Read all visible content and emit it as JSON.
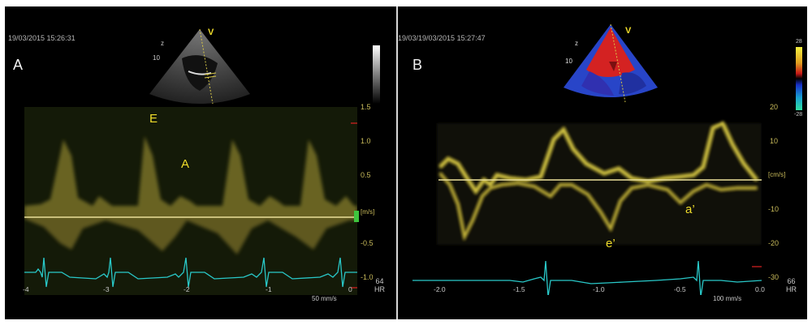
{
  "panel_a": {
    "timestamp": "19/03/2015 15:26:31",
    "label": "A",
    "sector_letter": "V",
    "peak_labels": {
      "e": "E",
      "a": "A"
    },
    "y_ticks": [
      "1.5",
      "1.0",
      "0.5",
      "[m/s]",
      "-0.5",
      "-1.0"
    ],
    "x_ticks": [
      "-4",
      "-3",
      "-2",
      "-1",
      "0"
    ],
    "sweep_speed": "50 mm/s",
    "heart_rate": "64",
    "hr_label": "HR",
    "trace_color": "#e8d848",
    "ecg_color": "#29c9c9"
  },
  "panel_b": {
    "timestamp": "19/03/19/03/2015 15:27:47",
    "label": "B",
    "sector_letter": "V",
    "peak_labels": {
      "e_prime": "e’",
      "a_prime": "a’"
    },
    "y_ticks": [
      "20",
      "10",
      "[cm/s]",
      "-10",
      "-20",
      "-30"
    ],
    "x_ticks": [
      "-2.0",
      "-1.5",
      "-1.0",
      "-0.5",
      "0.0"
    ],
    "sweep_speed": "100 mm/s",
    "heart_rate": "66",
    "hr_label": "HR",
    "color_bar_ticks": [
      "28",
      "-28"
    ],
    "trace_color": "#e8d848",
    "ecg_color": "#29c9c9"
  }
}
